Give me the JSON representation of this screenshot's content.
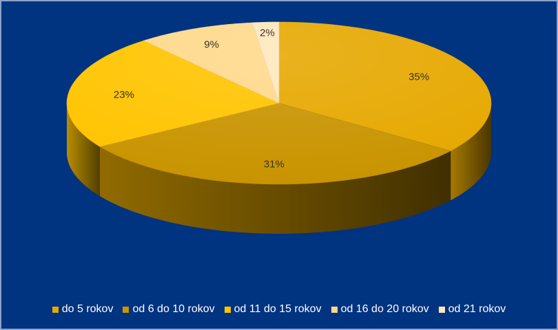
{
  "chart_data": {
    "type": "pie",
    "title": "",
    "categories": [
      "do 5 rokov",
      "od 6 do 10 rokov",
      "od 11 do 15 rokov",
      "od 16 do 20 rokov",
      "od 21 rokov"
    ],
    "values": [
      35,
      31,
      23,
      9,
      2
    ],
    "labels": [
      "35%",
      "31%",
      "23%",
      "9%",
      "2%"
    ],
    "colors": [
      "#e6a800",
      "#c99400",
      "#ffc400",
      "#ffd98a",
      "#ffe7bd"
    ],
    "background": "#003380",
    "legend_position": "bottom",
    "style": "3d-tilted"
  }
}
